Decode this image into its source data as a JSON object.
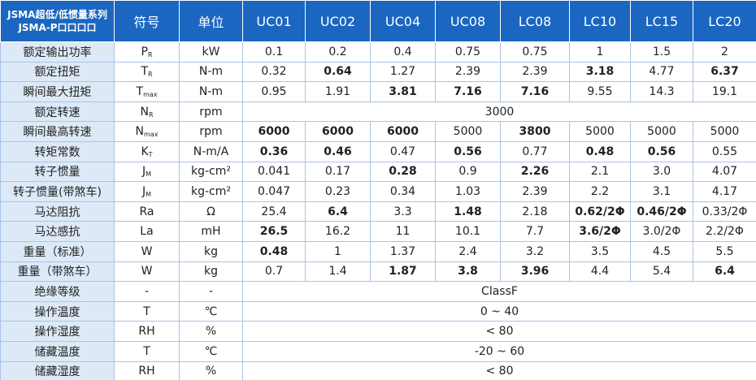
{
  "header": {
    "title": [
      "JSMA超低/低惯量系列",
      "JSMA-P口口口口"
    ],
    "columns": [
      "符号",
      "单位",
      "UC01",
      "UC02",
      "UC04",
      "UC08",
      "LC08",
      "LC10",
      "LC15",
      "LC20"
    ]
  },
  "table": {
    "rows": [
      {
        "label": "额定输出功率",
        "symbol": {
          "main": "P",
          "sub": "R"
        },
        "unit": "kW",
        "values": [
          "0.1",
          "0.2",
          "0.4",
          "0.75",
          "0.75",
          "1",
          "1.5",
          "2"
        ],
        "bold": [
          false,
          false,
          false,
          false,
          false,
          false,
          false,
          false
        ]
      },
      {
        "label": "额定扭矩",
        "symbol": {
          "main": "T",
          "sub": "R"
        },
        "unit": "N-m",
        "values": [
          "0.32",
          "0.64",
          "1.27",
          "2.39",
          "2.39",
          "3.18",
          "4.77",
          "6.37"
        ],
        "bold": [
          false,
          true,
          false,
          false,
          false,
          true,
          false,
          true
        ]
      },
      {
        "label": "瞬间最大扭矩",
        "symbol": {
          "main": "T",
          "sub": "max"
        },
        "unit": "N-m",
        "values": [
          "0.95",
          "1.91",
          "3.81",
          "7.16",
          "7.16",
          "9.55",
          "14.3",
          "19.1"
        ],
        "bold": [
          false,
          false,
          true,
          true,
          true,
          false,
          false,
          false
        ]
      },
      {
        "label": "额定转速",
        "symbol": {
          "main": "N",
          "sub": "R"
        },
        "unit": "rpm",
        "span": "3000"
      },
      {
        "label": "瞬间最高转速",
        "symbol": {
          "main": "N",
          "sub": "max"
        },
        "unit": "rpm",
        "values": [
          "6000",
          "6000",
          "6000",
          "5000",
          "3800",
          "5000",
          "5000",
          "5000"
        ],
        "bold": [
          true,
          true,
          true,
          false,
          true,
          false,
          false,
          false
        ]
      },
      {
        "label": "转矩常数",
        "symbol": {
          "main": "K",
          "sub": "T"
        },
        "unit": "N-m/A",
        "values": [
          "0.36",
          "0.46",
          "0.47",
          "0.56",
          "0.77",
          "0.48",
          "0.56",
          "0.55"
        ],
        "bold": [
          true,
          true,
          false,
          true,
          false,
          true,
          true,
          false
        ]
      },
      {
        "label": "转子惯量",
        "symbol": {
          "main": "J",
          "sub": "M"
        },
        "unit": "kg-cm²",
        "values": [
          "0.041",
          "0.17",
          "0.28",
          "0.9",
          "2.26",
          "2.1",
          "3.0",
          "4.07"
        ],
        "bold": [
          false,
          false,
          true,
          false,
          true,
          false,
          false,
          false
        ]
      },
      {
        "label": "转子惯量(带煞车)",
        "symbol": {
          "main": "J",
          "sub": "M"
        },
        "unit": "kg-cm²",
        "values": [
          "0.047",
          "0.23",
          "0.34",
          "1.03",
          "2.39",
          "2.2",
          "3.1",
          "4.17"
        ],
        "bold": [
          false,
          false,
          false,
          false,
          false,
          false,
          false,
          false
        ]
      },
      {
        "label": "马达阻抗",
        "symbol": {
          "main": "Ra"
        },
        "unit": "Ω",
        "values": [
          "25.4",
          "6.4",
          "3.3",
          "1.48",
          "2.18",
          "0.62/2Φ",
          "0.46/2Φ",
          "0.33/2Φ"
        ],
        "bold": [
          false,
          true,
          false,
          true,
          false,
          true,
          true,
          false
        ]
      },
      {
        "label": "马达感抗",
        "symbol": {
          "main": "La"
        },
        "unit": "mH",
        "values": [
          "26.5",
          "16.2",
          "11",
          "10.1",
          "7.7",
          "3.6/2Φ",
          "3.0/2Φ",
          "2.2/2Φ"
        ],
        "bold": [
          true,
          false,
          false,
          false,
          false,
          true,
          false,
          false
        ]
      },
      {
        "label": "重量（标准）",
        "symbol": {
          "main": "W"
        },
        "unit": "kg",
        "values": [
          "0.48",
          "1",
          "1.37",
          "2.4",
          "3.2",
          "3.5",
          "4.5",
          "5.5"
        ],
        "bold": [
          true,
          false,
          false,
          false,
          false,
          false,
          false,
          false
        ]
      },
      {
        "label": "重量（带煞车）",
        "symbol": {
          "main": "W"
        },
        "unit": "kg",
        "values": [
          "0.7",
          "1.4",
          "1.87",
          "3.8",
          "3.96",
          "4.4",
          "5.4",
          "6.4"
        ],
        "bold": [
          false,
          false,
          true,
          true,
          true,
          false,
          false,
          true
        ]
      },
      {
        "label": "绝缘等级",
        "symbol": {
          "main": "-"
        },
        "unit": "-",
        "span": "ClassF"
      },
      {
        "label": "操作温度",
        "symbol": {
          "main": "T"
        },
        "unit": "℃",
        "span": "0 ~ 40"
      },
      {
        "label": "操作湿度",
        "symbol": {
          "main": "RH"
        },
        "unit": "%",
        "span": "< 80"
      },
      {
        "label": "储藏温度",
        "symbol": {
          "main": "T"
        },
        "unit": "℃",
        "span": "-20 ~ 60"
      },
      {
        "label": "储藏湿度",
        "symbol": {
          "main": "RH"
        },
        "unit": "%",
        "span": "< 80"
      }
    ]
  }
}
